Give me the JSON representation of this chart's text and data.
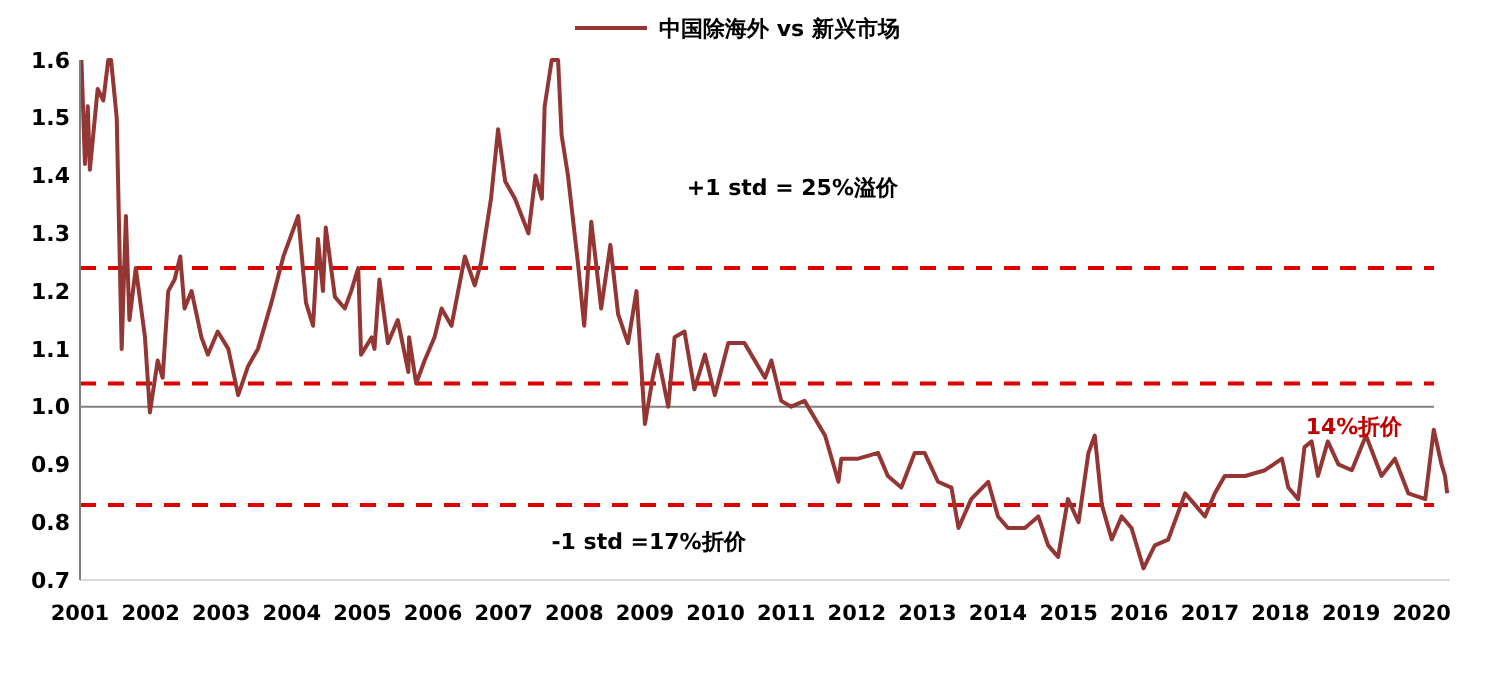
{
  "chart_data": {
    "type": "line",
    "legend": "top",
    "marker": "none",
    "line_style": "solid",
    "grid": false,
    "xlim": [
      2001,
      2020.4
    ],
    "xticks": [
      2001,
      2002,
      2003,
      2004,
      2005,
      2006,
      2007,
      2008,
      2009,
      2010,
      2011,
      2012,
      2013,
      2014,
      2015,
      2016,
      2017,
      2018,
      2019,
      2020
    ],
    "ylim": [
      0.7,
      1.6
    ],
    "yticks": [
      0.7,
      0.8,
      0.9,
      {
        "value": 1,
        "label": "1.0"
      },
      1.1,
      1.2,
      1.3,
      1.4,
      1.5,
      1.6
    ],
    "series": [
      {
        "name": "中国除海外 vs 新兴市场",
        "color": "#943634",
        "x": [
          2001.02,
          2001.07,
          2001.11,
          2001.14,
          2001.25,
          2001.33,
          2001.4,
          2001.44,
          2001.52,
          2001.59,
          2001.65,
          2001.7,
          2001.79,
          2001.92,
          2001.99,
          2002.1,
          2002.17,
          2002.25,
          2002.34,
          2002.42,
          2002.48,
          2002.58,
          2002.72,
          2002.81,
          2002.95,
          2003.1,
          2003.24,
          2003.38,
          2003.52,
          2003.71,
          2003.88,
          2004.09,
          2004.2,
          2004.3,
          2004.37,
          2004.44,
          2004.48,
          2004.61,
          2004.75,
          2004.84,
          2004.94,
          2004.98,
          2005.13,
          2005.17,
          2005.24,
          2005.36,
          2005.5,
          2005.65,
          2005.66,
          2005.76,
          2005.88,
          2006.02,
          2006.12,
          2006.26,
          2006.45,
          2006.59,
          2006.68,
          2006.82,
          2006.92,
          2007.02,
          2007.16,
          2007.35,
          2007.45,
          2007.54,
          2007.58,
          2007.68,
          2007.77,
          2007.82,
          2007.91,
          2008.05,
          2008.14,
          2008.24,
          2008.38,
          2008.51,
          2008.62,
          2008.76,
          2008.88,
          2009.0,
          2009.11,
          2009.18,
          2009.33,
          2009.42,
          2009.56,
          2009.7,
          2009.85,
          2009.99,
          2010.18,
          2010.41,
          2010.7,
          2010.79,
          2010.93,
          2011.07,
          2011.26,
          2011.55,
          2011.74,
          2011.78,
          2012.02,
          2012.3,
          2012.44,
          2012.63,
          2012.82,
          2012.96,
          2013.15,
          2013.34,
          2013.44,
          2013.62,
          2013.86,
          2014.0,
          2014.14,
          2014.38,
          2014.57,
          2014.71,
          2014.85,
          2014.99,
          2015.14,
          2015.28,
          2015.37,
          2015.47,
          2015.61,
          2015.75,
          2015.89,
          2016.06,
          2016.22,
          2016.41,
          2016.65,
          2016.79,
          2016.93,
          2017.07,
          2017.21,
          2017.5,
          2017.78,
          2018.02,
          2018.11,
          2018.25,
          2018.34,
          2018.44,
          2018.53,
          2018.67,
          2018.82,
          2019.01,
          2019.21,
          2019.43,
          2019.62,
          2019.81,
          2020.05,
          2020.17,
          2020.28,
          2020.33,
          2020.36
        ],
        "values": [
          1.6,
          1.42,
          1.52,
          1.41,
          1.55,
          1.53,
          1.6,
          1.6,
          1.5,
          1.1,
          1.33,
          1.15,
          1.24,
          1.12,
          0.99,
          1.08,
          1.05,
          1.2,
          1.22,
          1.26,
          1.17,
          1.2,
          1.12,
          1.09,
          1.13,
          1.1,
          1.02,
          1.07,
          1.1,
          1.18,
          1.26,
          1.33,
          1.18,
          1.14,
          1.29,
          1.2,
          1.31,
          1.19,
          1.17,
          1.2,
          1.24,
          1.09,
          1.12,
          1.1,
          1.22,
          1.11,
          1.15,
          1.06,
          1.12,
          1.04,
          1.08,
          1.12,
          1.17,
          1.14,
          1.26,
          1.21,
          1.25,
          1.36,
          1.48,
          1.39,
          1.36,
          1.3,
          1.4,
          1.36,
          1.52,
          1.6,
          1.6,
          1.47,
          1.4,
          1.25,
          1.14,
          1.32,
          1.17,
          1.28,
          1.16,
          1.11,
          1.2,
          0.97,
          1.05,
          1.09,
          1.0,
          1.12,
          1.13,
          1.03,
          1.09,
          1.02,
          1.11,
          1.11,
          1.05,
          1.08,
          1.01,
          1.0,
          1.01,
          0.95,
          0.87,
          0.91,
          0.91,
          0.92,
          0.88,
          0.86,
          0.92,
          0.92,
          0.87,
          0.86,
          0.79,
          0.84,
          0.87,
          0.81,
          0.79,
          0.79,
          0.81,
          0.76,
          0.74,
          0.84,
          0.8,
          0.92,
          0.95,
          0.83,
          0.77,
          0.81,
          0.79,
          0.72,
          0.76,
          0.77,
          0.85,
          0.83,
          0.81,
          0.85,
          0.88,
          0.88,
          0.89,
          0.91,
          0.86,
          0.84,
          0.93,
          0.94,
          0.88,
          0.94,
          0.9,
          0.89,
          0.95,
          0.88,
          0.91,
          0.85,
          0.84,
          0.96,
          0.9,
          0.88,
          0.85
        ]
      }
    ],
    "ref_lines": [
      {
        "axis": "y",
        "value": 1.24,
        "color": "#e00000",
        "line_style": "dashed"
      },
      {
        "axis": "y",
        "value": 1.04,
        "color": "#e00000",
        "line_style": "dashed"
      },
      {
        "axis": "y",
        "value": 0.83,
        "color": "#e00000",
        "line_style": "dashed"
      },
      {
        "axis": "y",
        "value": 1.0,
        "color": "#808080",
        "line_style": "solid"
      }
    ],
    "annotations": [
      "+1 std = 25%溢价",
      "-1 std =17%折价",
      "14%折价"
    ]
  }
}
